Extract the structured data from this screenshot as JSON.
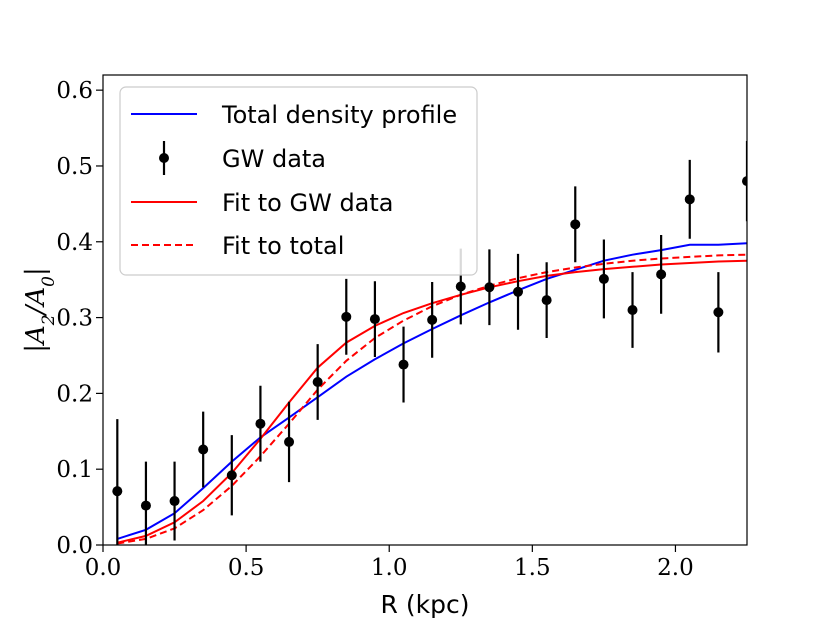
{
  "chart_data": {
    "type": "line",
    "xlabel": "R (kpc)",
    "ylabel": "|A2/A0|",
    "xlim": [
      0.0,
      2.25
    ],
    "ylim": [
      0.0,
      0.62
    ],
    "xticks": [
      0.0,
      0.5,
      1.0,
      1.5,
      2.0
    ],
    "xtick_labels": [
      "0.0",
      "0.5",
      "1.0",
      "1.5",
      "2.0"
    ],
    "yticks": [
      0.0,
      0.1,
      0.2,
      0.3,
      0.4,
      0.5,
      0.6
    ],
    "ytick_labels": [
      "0.0",
      "0.1",
      "0.2",
      "0.3",
      "0.4",
      "0.5",
      "0.6"
    ],
    "legend_position": "top-left",
    "series": [
      {
        "name": "Total density profile",
        "kind": "line",
        "color": "#0000ff",
        "dash": "solid",
        "x": [
          0.05,
          0.15,
          0.25,
          0.35,
          0.45,
          0.55,
          0.65,
          0.75,
          0.85,
          0.95,
          1.05,
          1.15,
          1.25,
          1.35,
          1.45,
          1.55,
          1.65,
          1.75,
          1.85,
          1.95,
          2.05,
          2.15,
          2.25
        ],
        "y": [
          0.008,
          0.02,
          0.042,
          0.075,
          0.11,
          0.142,
          0.168,
          0.195,
          0.222,
          0.245,
          0.266,
          0.285,
          0.303,
          0.32,
          0.336,
          0.351,
          0.363,
          0.375,
          0.383,
          0.389,
          0.396,
          0.396,
          0.398
        ]
      },
      {
        "name": "GW data",
        "kind": "errorbar",
        "color": "#000000",
        "x": [
          0.05,
          0.15,
          0.25,
          0.35,
          0.45,
          0.55,
          0.65,
          0.75,
          0.85,
          0.95,
          1.05,
          1.15,
          1.25,
          1.35,
          1.45,
          1.55,
          1.65,
          1.75,
          1.85,
          1.95,
          2.05,
          2.15,
          2.25
        ],
        "y": [
          0.071,
          0.052,
          0.058,
          0.126,
          0.092,
          0.16,
          0.136,
          0.215,
          0.301,
          0.298,
          0.238,
          0.297,
          0.341,
          0.34,
          0.334,
          0.323,
          0.423,
          0.351,
          0.31,
          0.357,
          0.456,
          0.307,
          0.48
        ],
        "yerr": [
          0.095,
          0.058,
          0.052,
          0.05,
          0.053,
          0.05,
          0.053,
          0.05,
          0.05,
          0.05,
          0.05,
          0.05,
          0.05,
          0.05,
          0.05,
          0.05,
          0.05,
          0.052,
          0.05,
          0.052,
          0.052,
          0.053,
          0.053
        ]
      },
      {
        "name": "Fit to GW data",
        "kind": "line",
        "color": "#ff0000",
        "dash": "solid",
        "x": [
          0.05,
          0.15,
          0.25,
          0.35,
          0.45,
          0.55,
          0.65,
          0.75,
          0.85,
          0.95,
          1.05,
          1.15,
          1.25,
          1.35,
          1.45,
          1.55,
          1.65,
          1.75,
          1.85,
          1.95,
          2.05,
          2.15,
          2.25
        ],
        "y": [
          0.003,
          0.012,
          0.03,
          0.058,
          0.095,
          0.14,
          0.188,
          0.234,
          0.267,
          0.289,
          0.306,
          0.319,
          0.33,
          0.34,
          0.348,
          0.355,
          0.36,
          0.364,
          0.367,
          0.37,
          0.372,
          0.374,
          0.375
        ]
      },
      {
        "name": "Fit to total",
        "kind": "line",
        "color": "#ff0000",
        "dash": "dashed",
        "x": [
          0.05,
          0.15,
          0.25,
          0.35,
          0.45,
          0.55,
          0.65,
          0.75,
          0.85,
          0.95,
          1.05,
          1.15,
          1.25,
          1.35,
          1.45,
          1.55,
          1.65,
          1.75,
          1.85,
          1.95,
          2.05,
          2.15,
          2.25
        ],
        "y": [
          0.002,
          0.008,
          0.022,
          0.046,
          0.078,
          0.117,
          0.16,
          0.205,
          0.243,
          0.273,
          0.296,
          0.315,
          0.33,
          0.342,
          0.352,
          0.36,
          0.366,
          0.371,
          0.375,
          0.378,
          0.38,
          0.382,
          0.383
        ]
      }
    ]
  }
}
